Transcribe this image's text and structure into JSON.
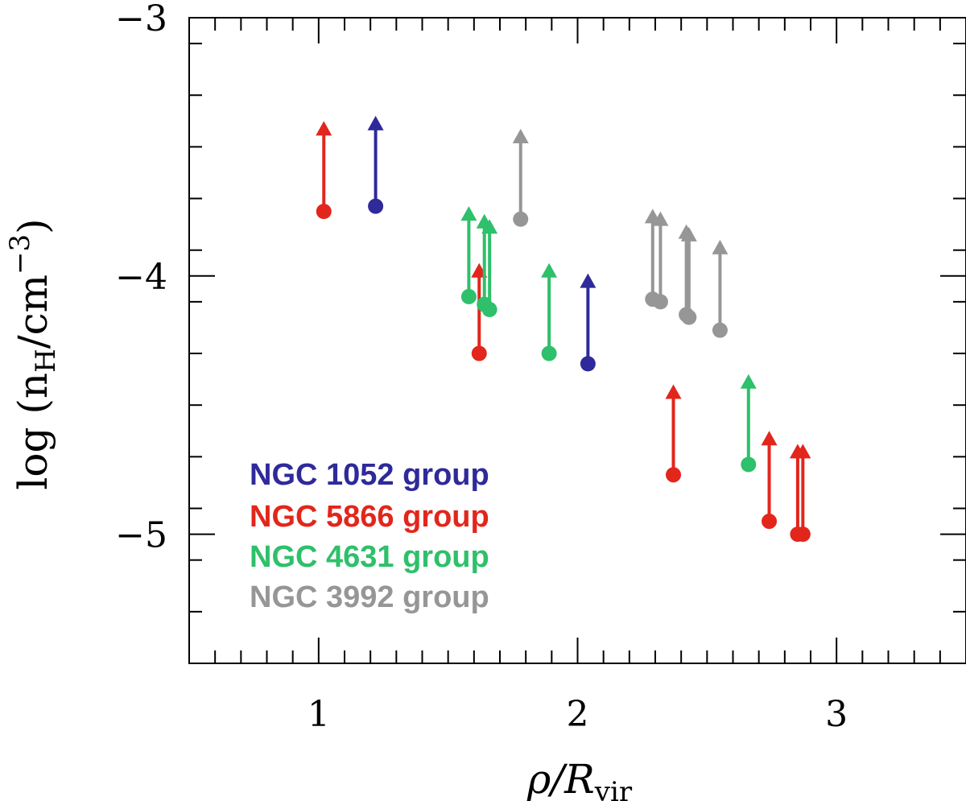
{
  "chart_data": {
    "type": "scatter",
    "subtype": "lower-limit arrows",
    "xlabel": {
      "main": "ρ/R",
      "sub": "vir"
    },
    "ylabel": {
      "prefix": "log  (n",
      "sub": "H",
      "suffix": "/cm",
      "sup": "−3",
      "close": ")"
    },
    "xlim": [
      0.5,
      3.5
    ],
    "ylim": [
      -5.5,
      -3.0
    ],
    "xticks": [
      1,
      2,
      3
    ],
    "xtick_labels": [
      "1",
      "2",
      "3"
    ],
    "yticks": [
      -3,
      -4,
      -5
    ],
    "ytick_labels": [
      "−3",
      "−4",
      "−5"
    ],
    "x_minor_step": 0.1,
    "y_minor_step": 0.2,
    "legend": {
      "placement": "lower-left",
      "entries": [
        {
          "label": "NGC 1052 group",
          "color": "#2e2a9a"
        },
        {
          "label": "NGC 5866 group",
          "color": "#e2261c"
        },
        {
          "label": "NGC 4631 group",
          "color": "#2ec06a"
        },
        {
          "label": "NGC 3992 group",
          "color": "#969696"
        }
      ]
    },
    "series": [
      {
        "name": "NGC 1052 group",
        "color": "#2e2a9a",
        "points": [
          {
            "x": 1.22,
            "y": -3.73,
            "limit": -3.38
          },
          {
            "x": 2.04,
            "y": -4.34,
            "limit": -3.99
          }
        ]
      },
      {
        "name": "NGC 5866 group",
        "color": "#e2261c",
        "points": [
          {
            "x": 1.02,
            "y": -3.75,
            "limit": -3.4
          },
          {
            "x": 1.62,
            "y": -4.3,
            "limit": -3.95
          },
          {
            "x": 2.37,
            "y": -4.77,
            "limit": -4.42
          },
          {
            "x": 2.74,
            "y": -4.95,
            "limit": -4.6
          },
          {
            "x": 2.85,
            "y": -5.0,
            "limit": -4.65
          },
          {
            "x": 2.87,
            "y": -5.0,
            "limit": -4.65
          }
        ]
      },
      {
        "name": "NGC 4631 group",
        "color": "#2ec06a",
        "points": [
          {
            "x": 1.58,
            "y": -4.08,
            "limit": -3.73
          },
          {
            "x": 1.64,
            "y": -4.11,
            "limit": -3.76
          },
          {
            "x": 1.66,
            "y": -4.13,
            "limit": -3.78
          },
          {
            "x": 1.89,
            "y": -4.3,
            "limit": -3.95
          },
          {
            "x": 2.66,
            "y": -4.73,
            "limit": -4.38
          }
        ]
      },
      {
        "name": "NGC 3992 group",
        "color": "#969696",
        "points": [
          {
            "x": 1.78,
            "y": -3.78,
            "limit": -3.43
          },
          {
            "x": 2.29,
            "y": -4.09,
            "limit": -3.74
          },
          {
            "x": 2.32,
            "y": -4.1,
            "limit": -3.75
          },
          {
            "x": 2.42,
            "y": -4.15,
            "limit": -3.8
          },
          {
            "x": 2.43,
            "y": -4.16,
            "limit": -3.81
          },
          {
            "x": 2.55,
            "y": -4.21,
            "limit": -3.86
          }
        ]
      }
    ]
  }
}
